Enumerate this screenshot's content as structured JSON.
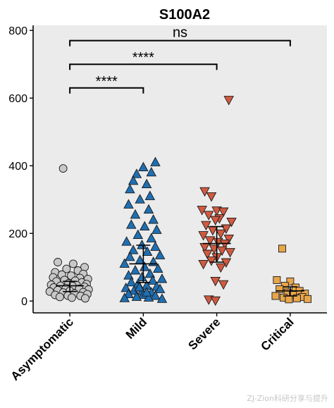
{
  "chart_data": {
    "type": "scatter",
    "title": "S100A2",
    "xlabel": "",
    "ylabel": "",
    "ylim": [
      -35,
      815
    ],
    "yticks": [
      0,
      200,
      400,
      600,
      800
    ],
    "categories": [
      "Asymptomatic",
      "Mild",
      "Severe",
      "Critical"
    ],
    "grid": false,
    "background": "#ebebeb",
    "series": [
      {
        "category": "Asymptomatic",
        "marker": "circle",
        "color": "#c8c8c8",
        "median": 45,
        "iqr": [
          28,
          58
        ],
        "points": [
          {
            "x": -0.1,
            "y": 392
          },
          {
            "x": -0.18,
            "y": 115
          },
          {
            "x": 0.05,
            "y": 110
          },
          {
            "x": 0.22,
            "y": 100
          },
          {
            "x": -0.05,
            "y": 95
          },
          {
            "x": 0.12,
            "y": 90
          },
          {
            "x": -0.22,
            "y": 85
          },
          {
            "x": 0.2,
            "y": 80
          },
          {
            "x": -0.12,
            "y": 78
          },
          {
            "x": 0.02,
            "y": 75
          },
          {
            "x": -0.25,
            "y": 70
          },
          {
            "x": 0.15,
            "y": 68
          },
          {
            "x": 0.27,
            "y": 65
          },
          {
            "x": -0.08,
            "y": 62
          },
          {
            "x": 0.08,
            "y": 60
          },
          {
            "x": -0.2,
            "y": 58
          },
          {
            "x": 0.18,
            "y": 55
          },
          {
            "x": -0.02,
            "y": 52
          },
          {
            "x": 0.25,
            "y": 50
          },
          {
            "x": -0.28,
            "y": 48
          },
          {
            "x": 0.1,
            "y": 47
          },
          {
            "x": -0.14,
            "y": 45
          },
          {
            "x": 0.04,
            "y": 44
          },
          {
            "x": 0.22,
            "y": 42
          },
          {
            "x": -0.24,
            "y": 40
          },
          {
            "x": -0.06,
            "y": 38
          },
          {
            "x": 0.14,
            "y": 36
          },
          {
            "x": 0.28,
            "y": 34
          },
          {
            "x": -0.18,
            "y": 32
          },
          {
            "x": 0.0,
            "y": 30
          },
          {
            "x": -0.3,
            "y": 28
          },
          {
            "x": 0.2,
            "y": 26
          },
          {
            "x": -0.1,
            "y": 25
          },
          {
            "x": 0.07,
            "y": 22
          },
          {
            "x": 0.26,
            "y": 20
          },
          {
            "x": -0.22,
            "y": 18
          },
          {
            "x": -0.03,
            "y": 16
          },
          {
            "x": 0.16,
            "y": 15
          },
          {
            "x": -0.15,
            "y": 12
          },
          {
            "x": 0.03,
            "y": 10
          },
          {
            "x": 0.23,
            "y": 8
          }
        ]
      },
      {
        "category": "Mild",
        "marker": "triangle-up",
        "color": "#1f6fb2",
        "median": 110,
        "iqr": [
          55,
          165
        ],
        "points": [
          {
            "x": 0.18,
            "y": 410
          },
          {
            "x": 0.0,
            "y": 395
          },
          {
            "x": 0.12,
            "y": 380
          },
          {
            "x": -0.1,
            "y": 375
          },
          {
            "x": 0.05,
            "y": 345
          },
          {
            "x": -0.15,
            "y": 355
          },
          {
            "x": -0.2,
            "y": 330
          },
          {
            "x": 0.1,
            "y": 310
          },
          {
            "x": -0.05,
            "y": 300
          },
          {
            "x": -0.22,
            "y": 285
          },
          {
            "x": 0.08,
            "y": 270
          },
          {
            "x": -0.12,
            "y": 255
          },
          {
            "x": 0.15,
            "y": 240
          },
          {
            "x": -0.18,
            "y": 225
          },
          {
            "x": 0.02,
            "y": 220
          },
          {
            "x": 0.2,
            "y": 210
          },
          {
            "x": -0.08,
            "y": 195
          },
          {
            "x": 0.12,
            "y": 185
          },
          {
            "x": -0.25,
            "y": 175
          },
          {
            "x": -0.02,
            "y": 165
          },
          {
            "x": 0.18,
            "y": 160
          },
          {
            "x": -0.15,
            "y": 150
          },
          {
            "x": 0.06,
            "y": 145
          },
          {
            "x": 0.25,
            "y": 135
          },
          {
            "x": -0.2,
            "y": 130
          },
          {
            "x": -0.05,
            "y": 120
          },
          {
            "x": 0.15,
            "y": 115
          },
          {
            "x": -0.28,
            "y": 110
          },
          {
            "x": 0.02,
            "y": 100
          },
          {
            "x": 0.22,
            "y": 95
          },
          {
            "x": -0.12,
            "y": 90
          },
          {
            "x": 0.1,
            "y": 80
          },
          {
            "x": -0.22,
            "y": 75
          },
          {
            "x": -0.02,
            "y": 70
          },
          {
            "x": 0.28,
            "y": 65
          },
          {
            "x": 0.14,
            "y": 60
          },
          {
            "x": -0.18,
            "y": 55
          },
          {
            "x": -0.08,
            "y": 50
          },
          {
            "x": 0.05,
            "y": 45
          },
          {
            "x": 0.2,
            "y": 42
          },
          {
            "x": -0.26,
            "y": 38
          },
          {
            "x": 0.25,
            "y": 35
          },
          {
            "x": -0.14,
            "y": 30
          },
          {
            "x": -0.02,
            "y": 28
          },
          {
            "x": 0.12,
            "y": 25
          },
          {
            "x": -0.22,
            "y": 20
          },
          {
            "x": 0.0,
            "y": 18
          },
          {
            "x": 0.18,
            "y": 15
          },
          {
            "x": -0.1,
            "y": 12
          },
          {
            "x": 0.08,
            "y": 10
          },
          {
            "x": -0.28,
            "y": 8
          },
          {
            "x": 0.28,
            "y": 6
          },
          {
            "x": 0.05,
            "y": 25
          },
          {
            "x": -0.06,
            "y": 40
          }
        ]
      },
      {
        "category": "Severe",
        "marker": "triangle-down",
        "color": "#d05a40",
        "median": 170,
        "iqr": [
          115,
          220
        ],
        "points": [
          {
            "x": 0.18,
            "y": 595
          },
          {
            "x": -0.18,
            "y": 325
          },
          {
            "x": -0.08,
            "y": 310
          },
          {
            "x": -0.22,
            "y": 270
          },
          {
            "x": 0.0,
            "y": 268
          },
          {
            "x": 0.1,
            "y": 265
          },
          {
            "x": -0.12,
            "y": 255
          },
          {
            "x": 0.04,
            "y": 245
          },
          {
            "x": -0.02,
            "y": 240
          },
          {
            "x": 0.22,
            "y": 235
          },
          {
            "x": -0.16,
            "y": 225
          },
          {
            "x": 0.14,
            "y": 215
          },
          {
            "x": -0.06,
            "y": 210
          },
          {
            "x": 0.06,
            "y": 200
          },
          {
            "x": -0.2,
            "y": 195
          },
          {
            "x": 0.18,
            "y": 185
          },
          {
            "x": -0.1,
            "y": 180
          },
          {
            "x": 0.02,
            "y": 175
          },
          {
            "x": 0.12,
            "y": 170
          },
          {
            "x": -0.18,
            "y": 160
          },
          {
            "x": -0.04,
            "y": 155
          },
          {
            "x": 0.08,
            "y": 150
          },
          {
            "x": 0.2,
            "y": 145
          },
          {
            "x": -0.14,
            "y": 140
          },
          {
            "x": 0.0,
            "y": 130
          },
          {
            "x": -0.08,
            "y": 120
          },
          {
            "x": 0.14,
            "y": 115
          },
          {
            "x": -0.2,
            "y": 110
          },
          {
            "x": 0.06,
            "y": 100
          },
          {
            "x": -0.02,
            "y": 60
          },
          {
            "x": 0.1,
            "y": 50
          },
          {
            "x": -0.12,
            "y": 5
          },
          {
            "x": -0.02,
            "y": 2
          }
        ]
      },
      {
        "category": "Critical",
        "marker": "square",
        "color": "#e8a64a",
        "median": 30,
        "iqr": [
          15,
          42
        ],
        "points": [
          {
            "x": -0.12,
            "y": 155
          },
          {
            "x": -0.2,
            "y": 62
          },
          {
            "x": 0.0,
            "y": 58
          },
          {
            "x": -0.08,
            "y": 45
          },
          {
            "x": 0.08,
            "y": 40
          },
          {
            "x": -0.16,
            "y": 35
          },
          {
            "x": 0.14,
            "y": 30
          },
          {
            "x": -0.04,
            "y": 25
          },
          {
            "x": 0.22,
            "y": 22
          },
          {
            "x": 0.04,
            "y": 18
          },
          {
            "x": -0.22,
            "y": 15
          },
          {
            "x": 0.18,
            "y": 12
          },
          {
            "x": -0.1,
            "y": 10
          },
          {
            "x": 0.1,
            "y": 8
          },
          {
            "x": -0.02,
            "y": 5
          },
          {
            "x": 0.26,
            "y": 6
          }
        ]
      }
    ],
    "comparisons": [
      {
        "from": "Asymptomatic",
        "to": "Mild",
        "label": "****",
        "y": 630
      },
      {
        "from": "Asymptomatic",
        "to": "Severe",
        "label": "****",
        "y": 700
      },
      {
        "from": "Asymptomatic",
        "to": "Critical",
        "label": "ns",
        "y": 770
      }
    ]
  },
  "watermark": "ZJ-Zion科研分享与提升"
}
